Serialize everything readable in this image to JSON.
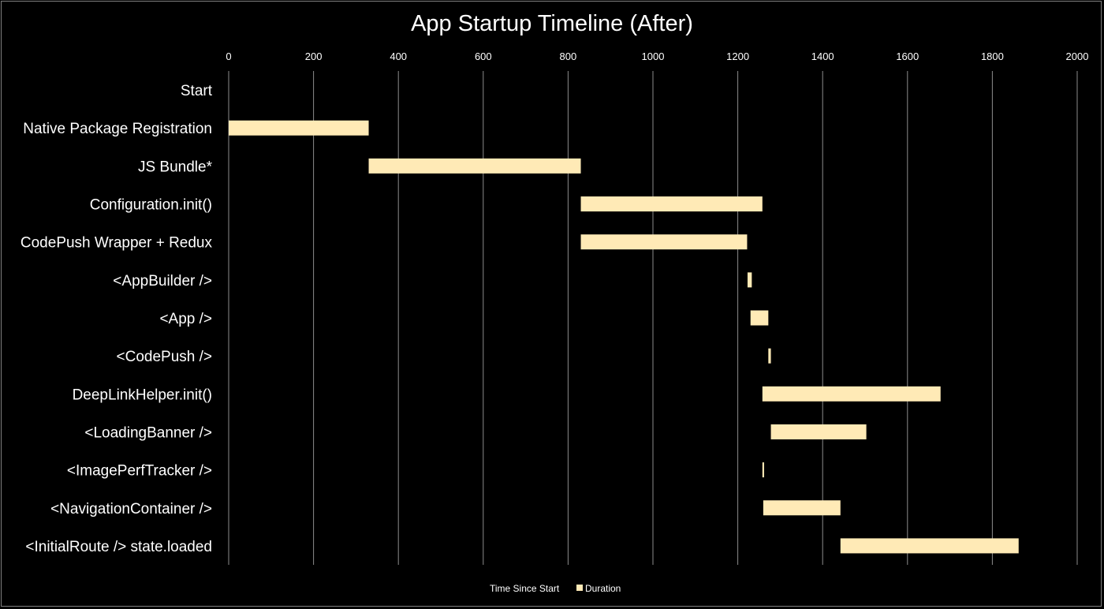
{
  "chart_data": {
    "type": "bar",
    "orientation": "horizontal",
    "title": "App Startup Timeline (After)",
    "xlim": [
      0,
      2000
    ],
    "xticks": [
      0,
      200,
      400,
      600,
      800,
      1000,
      1200,
      1400,
      1600,
      1800,
      2000
    ],
    "grid": true,
    "legend_position": "bottom",
    "categories": [
      "Start",
      "Native Package Registration",
      "JS Bundle*",
      "Configuration.init()",
      "CodePush Wrapper + Redux",
      "<AppBuilder />",
      "<App />",
      "<CodePush />",
      "DeepLinkHelper.init()",
      "<LoadingBanner />",
      "<ImagePerfTracker />",
      "<NavigationContainer />",
      "<InitialRoute /> state.loaded"
    ],
    "series": [
      {
        "name": "Time Since Start",
        "stacked_offset": true,
        "color": "transparent",
        "values": [
          0,
          0,
          330,
          830,
          830,
          1223,
          1230,
          1272,
          1258,
          1278,
          1258,
          1260,
          1442
        ]
      },
      {
        "name": "Duration",
        "color": "#ffeab6",
        "values": [
          0,
          330,
          500,
          428,
          392,
          10,
          42,
          6,
          420,
          225,
          4,
          182,
          420
        ]
      }
    ]
  }
}
